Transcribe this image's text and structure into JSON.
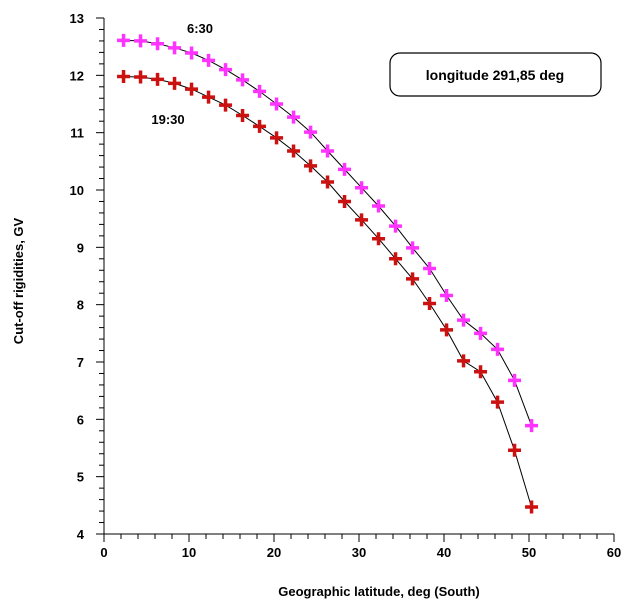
{
  "chart_data": {
    "type": "line",
    "title": "",
    "xlabel": "Geographic latitude, deg (South)",
    "ylabel": "Cut-off rigidities, GV",
    "xlim": [
      0,
      60
    ],
    "ylim": [
      4,
      13
    ],
    "xticks": [
      0,
      10,
      20,
      30,
      40,
      50,
      60
    ],
    "yticks": [
      4,
      5,
      6,
      7,
      8,
      9,
      10,
      11,
      12,
      13
    ],
    "grid": false,
    "annotation": "longitude 291,85 deg",
    "series": [
      {
        "name": "6:30",
        "color": "#ff33ff",
        "marker": "plus",
        "x": [
          2.3,
          4.3,
          6.3,
          8.3,
          10.3,
          12.3,
          14.3,
          16.3,
          18.3,
          20.3,
          22.3,
          24.3,
          26.3,
          28.3,
          30.3,
          32.3,
          34.3,
          36.3,
          38.3,
          40.3,
          42.3,
          44.3,
          46.3,
          48.3,
          50.3
        ],
        "y": [
          12.61,
          12.6,
          12.55,
          12.48,
          12.39,
          12.26,
          12.1,
          11.92,
          11.72,
          11.5,
          11.27,
          11.01,
          10.68,
          10.36,
          10.04,
          9.72,
          9.37,
          8.99,
          8.63,
          8.16,
          7.73,
          7.5,
          7.22,
          6.68,
          5.89
        ]
      },
      {
        "name": "19:30",
        "color": "#cc1111",
        "marker": "plus",
        "x": [
          2.3,
          4.3,
          6.3,
          8.3,
          10.3,
          12.3,
          14.3,
          16.3,
          18.3,
          20.3,
          22.3,
          24.3,
          26.3,
          28.3,
          30.3,
          32.3,
          34.3,
          36.3,
          38.3,
          40.3,
          42.3,
          44.3,
          46.3,
          48.3,
          50.3
        ],
        "y": [
          11.98,
          11.97,
          11.93,
          11.86,
          11.76,
          11.62,
          11.48,
          11.3,
          11.11,
          10.91,
          10.68,
          10.42,
          10.14,
          9.8,
          9.48,
          9.15,
          8.8,
          8.45,
          8.02,
          7.56,
          7.02,
          6.83,
          6.3,
          5.46,
          4.47
        ]
      }
    ]
  }
}
